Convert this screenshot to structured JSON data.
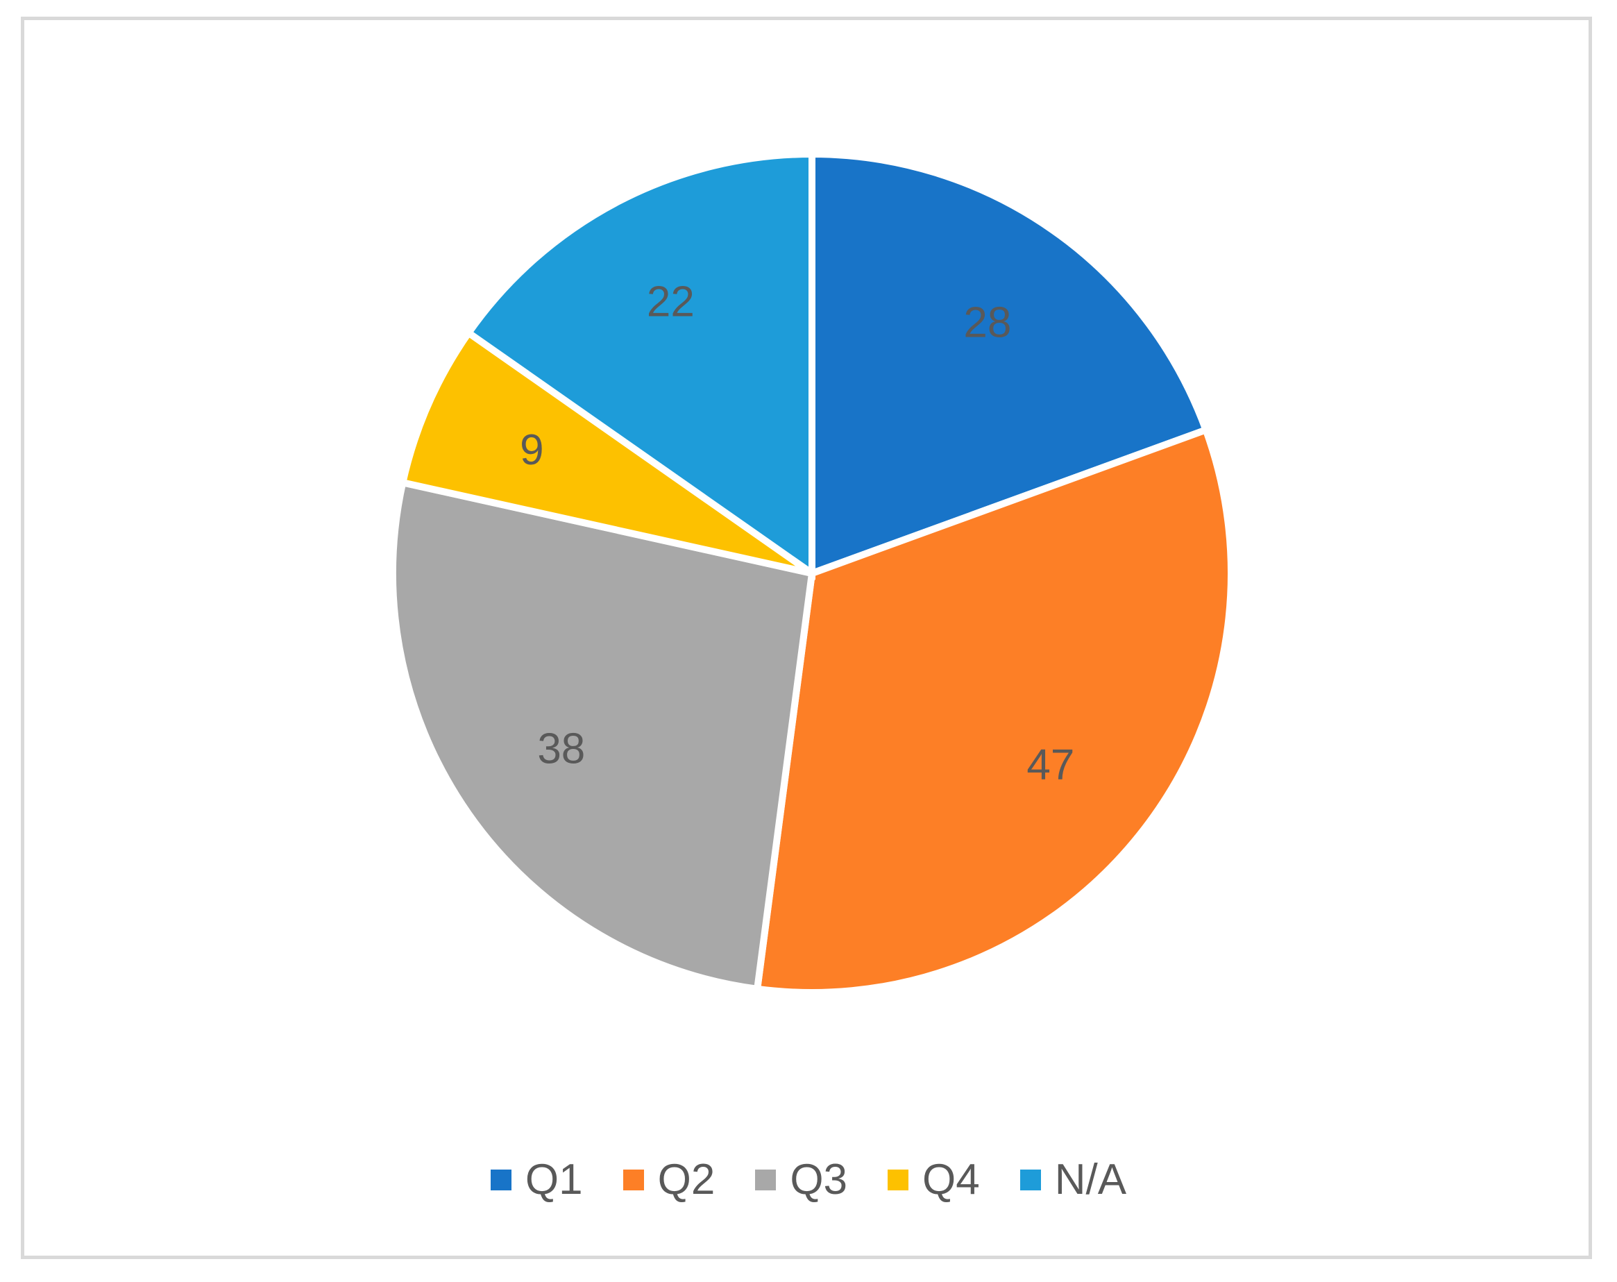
{
  "chart_data": {
    "type": "pie",
    "categories": [
      "Q1",
      "Q2",
      "Q3",
      "Q4",
      "N/A"
    ],
    "values": [
      28,
      47,
      38,
      9,
      22
    ],
    "colors": [
      "#1874c8",
      "#fd7f26",
      "#a8a8a8",
      "#fdc100",
      "#1e9cd9"
    ],
    "data_labels": [
      "28",
      "47",
      "38",
      "9",
      "22"
    ],
    "legend": {
      "placement": "bottom",
      "entries": [
        "Q1",
        "Q2",
        "Q3",
        "Q4",
        "N/A"
      ]
    }
  }
}
